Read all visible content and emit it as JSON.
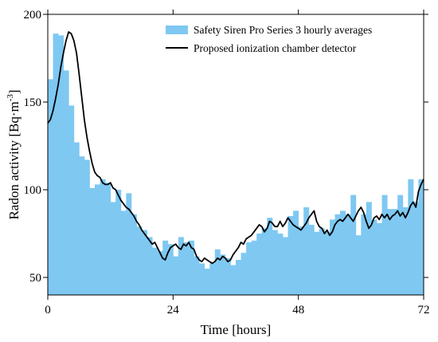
{
  "chart_data": {
    "type": "bar+line",
    "xlabel": "Time [hours]",
    "ylabel": "Radon activity [Bq·m",
    "ylabel_sup": "-3",
    "ylabel_close": "]",
    "xlim": [
      0,
      72
    ],
    "ylim": [
      40,
      200
    ],
    "xticks": [
      "0",
      "24",
      "48",
      "72"
    ],
    "yticks": [
      "50",
      "100",
      "150",
      "200"
    ],
    "grid": false,
    "legend_position": "top-right",
    "colors": {
      "bars": "#7ec8f2",
      "line": "#000000"
    },
    "series": [
      {
        "name": "Safety Siren Pro Series 3 hourly averages",
        "type": "bar",
        "x": [
          0,
          1,
          2,
          3,
          4,
          5,
          6,
          7,
          8,
          9,
          10,
          11,
          12,
          13,
          14,
          15,
          16,
          17,
          18,
          19,
          20,
          21,
          22,
          23,
          24,
          25,
          26,
          27,
          28,
          29,
          30,
          31,
          32,
          33,
          34,
          35,
          36,
          37,
          38,
          39,
          40,
          41,
          42,
          43,
          44,
          45,
          46,
          47,
          48,
          49,
          50,
          51,
          52,
          53,
          54,
          55,
          56,
          57,
          58,
          59,
          60,
          61,
          62,
          63,
          64,
          65,
          66,
          67,
          68,
          69,
          70,
          71
        ],
        "values": [
          163,
          189,
          188,
          168,
          148,
          127,
          119,
          117,
          101,
          103,
          106,
          104,
          93,
          100,
          88,
          98,
          86,
          79,
          77,
          73,
          67,
          65,
          71,
          69,
          62,
          73,
          70,
          71,
          62,
          58,
          55,
          58,
          66,
          63,
          61,
          57,
          60,
          64,
          70,
          71,
          75,
          78,
          84,
          77,
          75,
          73,
          85,
          88,
          79,
          90,
          80,
          76,
          78,
          76,
          83,
          86,
          88,
          86,
          97,
          74,
          86,
          93,
          83,
          81,
          97,
          89,
          89,
          97,
          90,
          106,
          93,
          106
        ]
      },
      {
        "name": "Proposed ionization chamber detector",
        "type": "line",
        "x": [
          0,
          0.5,
          1,
          1.5,
          2,
          2.5,
          3,
          3.5,
          4,
          4.5,
          5,
          5.5,
          6,
          6.5,
          7,
          7.5,
          8,
          8.5,
          9,
          9.5,
          10,
          10.5,
          11,
          11.5,
          12,
          12.5,
          13,
          13.5,
          14,
          14.5,
          15,
          15.5,
          16,
          16.5,
          17,
          17.5,
          18,
          18.5,
          19,
          19.5,
          20,
          20.5,
          21,
          21.5,
          22,
          22.5,
          23,
          23.5,
          24,
          24.5,
          25,
          25.5,
          26,
          26.5,
          27,
          27.5,
          28,
          28.5,
          29,
          29.5,
          30,
          30.5,
          31,
          31.5,
          32,
          32.5,
          33,
          33.5,
          34,
          34.5,
          35,
          35.5,
          36,
          36.5,
          37,
          37.5,
          38,
          38.5,
          39,
          39.5,
          40,
          40.5,
          41,
          41.5,
          42,
          42.5,
          43,
          43.5,
          44,
          44.5,
          45,
          45.5,
          46,
          46.5,
          47,
          47.5,
          48,
          48.5,
          49,
          49.5,
          50,
          50.5,
          51,
          51.5,
          52,
          52.5,
          53,
          53.5,
          54,
          54.5,
          55,
          55.5,
          56,
          56.5,
          57,
          57.5,
          58,
          58.5,
          59,
          59.5,
          60,
          60.5,
          61,
          61.5,
          62,
          62.5,
          63,
          63.5,
          64,
          64.5,
          65,
          65.5,
          66,
          66.5,
          67,
          67.5,
          68,
          68.5,
          69,
          69.5,
          70,
          70.5,
          71,
          71.5,
          72
        ],
        "values": [
          138,
          140,
          145,
          152,
          160,
          170,
          178,
          185,
          190,
          189,
          185,
          178,
          166,
          153,
          140,
          130,
          122,
          115,
          110,
          108,
          107,
          104,
          103,
          103,
          104,
          101,
          100,
          97,
          94,
          92,
          90,
          89,
          87,
          85,
          82,
          80,
          77,
          75,
          73,
          71,
          69,
          70,
          67,
          64,
          61,
          60,
          64,
          67,
          68,
          69,
          67,
          66,
          69,
          68,
          70,
          67,
          66,
          62,
          60,
          59,
          61,
          60,
          59,
          58,
          59,
          61,
          60,
          62,
          61,
          59,
          60,
          63,
          65,
          67,
          70,
          69,
          72,
          73,
          74,
          76,
          78,
          80,
          79,
          76,
          78,
          82,
          81,
          79,
          79,
          82,
          79,
          81,
          84,
          82,
          80,
          79,
          78,
          77,
          79,
          81,
          84,
          86,
          88,
          82,
          79,
          78,
          75,
          77,
          74,
          76,
          80,
          82,
          83,
          82,
          84,
          86,
          84,
          82,
          85,
          88,
          90,
          87,
          82,
          78,
          80,
          84,
          85,
          83,
          86,
          84,
          86,
          83,
          85,
          86,
          88,
          85,
          87,
          84,
          87,
          91,
          93,
          90,
          99,
          103,
          106
        ]
      }
    ]
  }
}
